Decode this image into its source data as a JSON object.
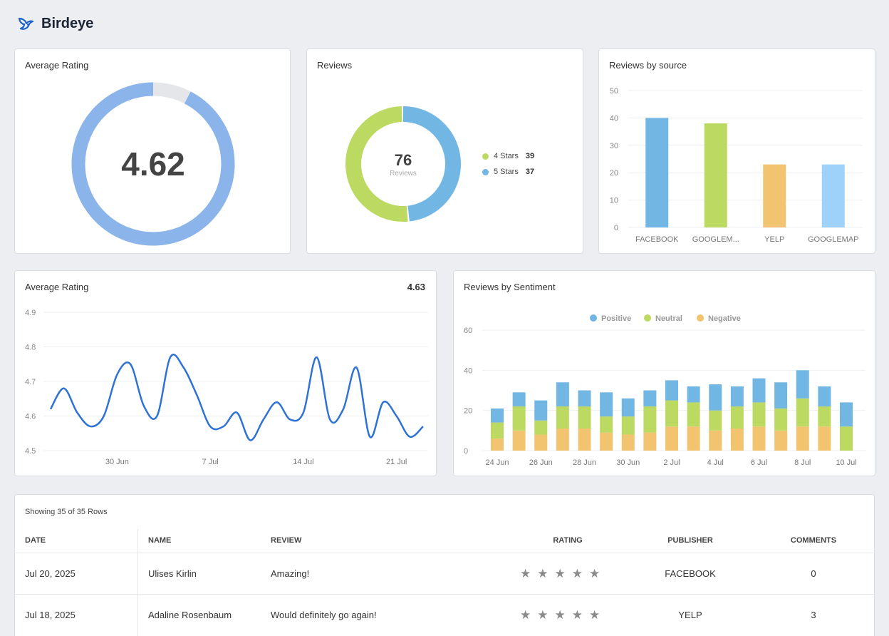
{
  "brand": {
    "name": "Birdeye",
    "logo_icon": "bird-logo-icon",
    "accent": "#1f63c9"
  },
  "cards": {
    "avg_rating_donut": {
      "title": "Average Rating",
      "value": "4.62",
      "fill_fraction": 0.924,
      "color": "#8ab4ea",
      "track_color": "#e4e6e9"
    },
    "reviews_donut": {
      "title": "Reviews",
      "total": "76",
      "total_label": "Reviews",
      "segments": [
        {
          "label": "4 Stars",
          "value": 39,
          "value_text": "39",
          "color": "#bcd962"
        },
        {
          "label": "5 Stars",
          "value": 37,
          "value_text": "37",
          "color": "#72b6e3"
        }
      ]
    },
    "reviews_by_source": {
      "title": "Reviews by source"
    },
    "avg_rating_line": {
      "title": "Average Rating",
      "headline_value": "4.63"
    },
    "reviews_by_sentiment": {
      "title": "Reviews by Sentiment"
    }
  },
  "chart_data": [
    {
      "type": "bar",
      "title": "Reviews by source",
      "categories": [
        "FACEBOOK",
        "GOOGLEM...",
        "YELP",
        "GOOGLEMAP"
      ],
      "values": [
        40,
        38,
        23,
        23
      ],
      "colors": [
        "#72b6e3",
        "#bcd962",
        "#f2c46f",
        "#9fd2fa"
      ],
      "ylim": [
        0,
        50
      ],
      "yticks": [
        0,
        10,
        20,
        30,
        40,
        50
      ],
      "grid": true
    },
    {
      "type": "line",
      "title": "Average Rating",
      "x": [
        "25 Jun",
        "26 Jun",
        "27 Jun",
        "28 Jun",
        "29 Jun",
        "30 Jun",
        "1 Jul",
        "2 Jul",
        "3 Jul",
        "4 Jul",
        "5 Jul",
        "6 Jul",
        "7 Jul",
        "8 Jul",
        "9 Jul",
        "10 Jul",
        "11 Jul",
        "12 Jul",
        "13 Jul",
        "14 Jul",
        "15 Jul",
        "16 Jul",
        "17 Jul",
        "18 Jul",
        "19 Jul",
        "20 Jul",
        "21 Jul",
        "22 Jul",
        "23 Jul"
      ],
      "y": [
        4.62,
        4.68,
        4.61,
        4.57,
        4.6,
        4.72,
        4.75,
        4.63,
        4.6,
        4.77,
        4.74,
        4.66,
        4.57,
        4.57,
        4.61,
        4.53,
        4.59,
        4.64,
        4.59,
        4.61,
        4.77,
        4.59,
        4.62,
        4.74,
        4.54,
        4.64,
        4.6,
        4.54,
        4.57
      ],
      "xticks": [
        "30 Jun",
        "7 Jul",
        "14 Jul",
        "21 Jul"
      ],
      "xtick_index": [
        5,
        12,
        19,
        26
      ],
      "ylim": [
        4.5,
        4.9
      ],
      "yticks": [
        4.5,
        4.6,
        4.7,
        4.8,
        4.9
      ],
      "color": "#2f72d6",
      "grid": true
    },
    {
      "type": "bar",
      "stacked": true,
      "title": "Reviews by Sentiment",
      "categories": [
        "24 Jun",
        "25 Jun",
        "26 Jun",
        "27 Jun",
        "28 Jun",
        "29 Jun",
        "30 Jun",
        "1 Jul",
        "2 Jul",
        "3 Jul",
        "4 Jul",
        "5 Jul",
        "6 Jul",
        "7 Jul",
        "8 Jul",
        "9 Jul",
        "10 Jul"
      ],
      "xticks": [
        "24 Jun",
        "26 Jun",
        "28 Jun",
        "30 Jun",
        "2 Jul",
        "4 Jul",
        "6 Jul",
        "8 Jul",
        "10 Jul"
      ],
      "series": [
        {
          "name": "Negative",
          "color": "#f2c46f",
          "values": [
            6,
            10,
            8,
            11,
            11,
            9,
            8,
            9,
            12,
            12,
            10,
            11,
            12,
            10,
            12,
            12,
            0
          ]
        },
        {
          "name": "Neutral",
          "color": "#bcd962",
          "values": [
            8,
            12,
            7,
            11,
            11,
            8,
            9,
            13,
            13,
            12,
            10,
            11,
            12,
            11,
            14,
            10,
            12
          ]
        },
        {
          "name": "Positive",
          "color": "#72b6e3",
          "values": [
            7,
            7,
            10,
            12,
            8,
            12,
            9,
            8,
            10,
            8,
            13,
            10,
            12,
            13,
            14,
            10,
            12
          ]
        }
      ],
      "legend_order": [
        "Positive",
        "Neutral",
        "Negative"
      ],
      "legend": "top",
      "ylim": [
        0,
        60
      ],
      "yticks": [
        0,
        20,
        40,
        60
      ],
      "grid": true
    }
  ],
  "table": {
    "showing": "Showing 35 of 35 Rows",
    "columns": [
      "DATE",
      "NAME",
      "REVIEW",
      "RATING",
      "PUBLISHER",
      "COMMENTS"
    ],
    "rows": [
      {
        "date": "Jul 20, 2025",
        "name": "Ulises Kirlin",
        "review": "Amazing!",
        "rating": 5,
        "publisher": "FACEBOOK",
        "comments": "0"
      },
      {
        "date": "Jul 18, 2025",
        "name": "Adaline Rosenbaum",
        "review": "Would definitely go again!",
        "rating": 5,
        "publisher": "YELP",
        "comments": "3"
      }
    ]
  }
}
